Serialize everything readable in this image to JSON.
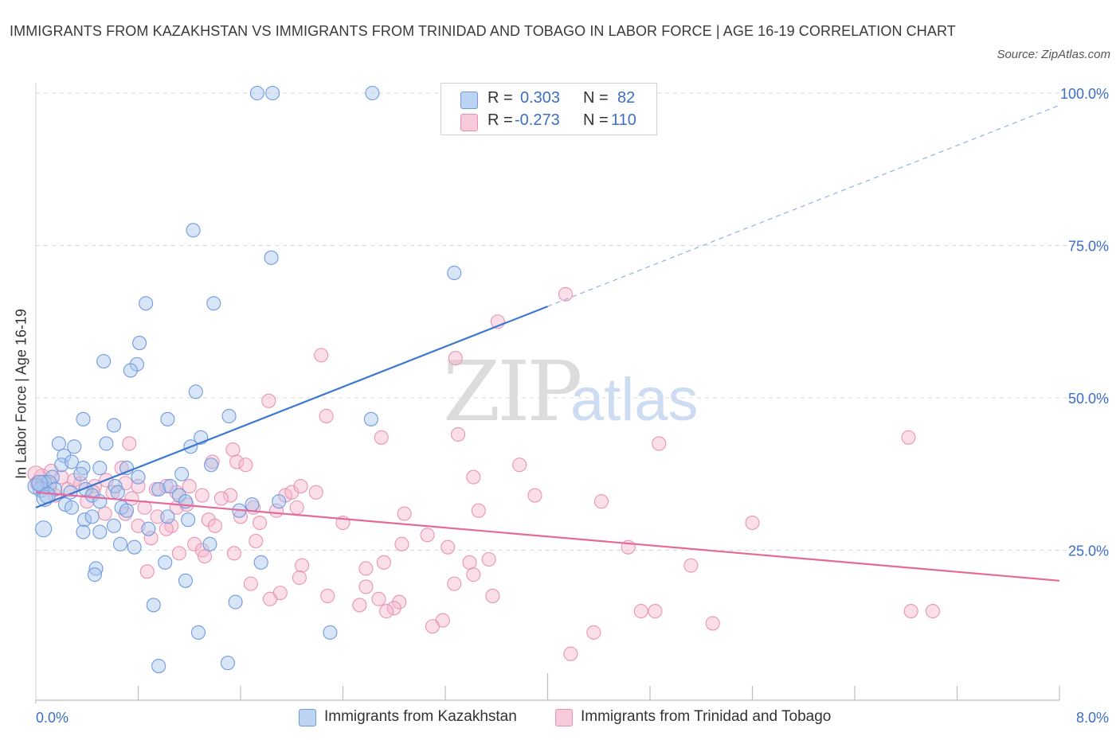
{
  "title": "IMMIGRANTS FROM KAZAKHSTAN VS IMMIGRANTS FROM TRINIDAD AND TOBAGO IN LABOR FORCE | AGE 16-19 CORRELATION CHART",
  "source": "Source: ZipAtlas.com",
  "watermark": {
    "zip": "ZIP",
    "atlas": "atlas"
  },
  "legend": {
    "rows": [
      {
        "r_label": "R =",
        "r_value": "0.303",
        "n_label": "N =",
        "n_value": "82"
      },
      {
        "r_label": "R =",
        "r_value": "-0.273",
        "n_label": "N =",
        "n_value": "110"
      }
    ]
  },
  "colors": {
    "blue": "#3b78d0",
    "blue_fill": "#a9c6ee",
    "pink": "#e46a9a",
    "pink_fill": "#f4b8cd",
    "grid": "#d8d8d8",
    "tick_label": "#3c6fc4"
  },
  "chart_data": {
    "type": "scatter",
    "title": "IMMIGRANTS FROM KAZAKHSTAN VS IMMIGRANTS FROM TRINIDAD AND TOBAGO IN LABOR FORCE | AGE 16-19 CORRELATION CHART",
    "xlabel": "",
    "ylabel": "In Labor Force | Age 16-19",
    "xlim": [
      0,
      8
    ],
    "ylim": [
      0,
      100
    ],
    "x_tick_labels": [
      "0.0%",
      "8.0%"
    ],
    "y_ticks": [
      25,
      50,
      75,
      100
    ],
    "y_tick_labels": [
      "25.0%",
      "50.0%",
      "75.0%",
      "100.0%"
    ],
    "grid": true,
    "legend_position": "top-center",
    "series": [
      {
        "name": "Immigrants from Kazakhstan",
        "color": "#3b78d0",
        "stats": {
          "R": 0.303,
          "N": 82
        },
        "trend": {
          "x0": 0.0,
          "y0": 32.0,
          "x1": 4.0,
          "y1": 65.0,
          "extend_to_x": 8.0,
          "extend_to_y": 98.0
        },
        "points": [
          [
            1.73,
            100
          ],
          [
            1.85,
            100
          ],
          [
            2.63,
            100
          ],
          [
            1.23,
            77.5
          ],
          [
            1.84,
            73.0
          ],
          [
            3.27,
            70.5
          ],
          [
            0.86,
            65.5
          ],
          [
            1.39,
            65.5
          ],
          [
            0.81,
            59.0
          ],
          [
            0.53,
            56.0
          ],
          [
            0.79,
            55.5
          ],
          [
            0.74,
            54.5
          ],
          [
            1.25,
            51.0
          ],
          [
            0.37,
            46.5
          ],
          [
            1.03,
            46.5
          ],
          [
            1.51,
            47.0
          ],
          [
            2.62,
            46.5
          ],
          [
            0.61,
            45.5
          ],
          [
            1.29,
            43.5
          ],
          [
            0.18,
            42.5
          ],
          [
            0.3,
            42.0
          ],
          [
            0.55,
            42.5
          ],
          [
            1.21,
            42.0
          ],
          [
            0.22,
            40.5
          ],
          [
            0.2,
            39.0
          ],
          [
            0.28,
            39.5
          ],
          [
            0.5,
            38.5
          ],
          [
            0.71,
            38.5
          ],
          [
            1.37,
            39.0
          ],
          [
            0.37,
            38.5
          ],
          [
            1.14,
            37.5
          ],
          [
            0.13,
            37.0
          ],
          [
            0.8,
            37.0
          ],
          [
            0.06,
            36.0
          ],
          [
            0.1,
            36.0
          ],
          [
            0.15,
            35.0
          ],
          [
            0.39,
            35.0
          ],
          [
            0.62,
            35.5
          ],
          [
            0.96,
            35.0
          ],
          [
            1.05,
            35.5
          ],
          [
            0.04,
            35.0
          ],
          [
            0.27,
            34.5
          ],
          [
            0.44,
            34.0
          ],
          [
            0.64,
            34.5
          ],
          [
            1.12,
            34.0
          ],
          [
            0.5,
            33.0
          ],
          [
            0.23,
            32.5
          ],
          [
            0.28,
            32.0
          ],
          [
            0.07,
            33.5
          ],
          [
            1.69,
            32.5
          ],
          [
            1.17,
            33.0
          ],
          [
            0.67,
            32.0
          ],
          [
            0.71,
            31.5
          ],
          [
            1.59,
            31.5
          ],
          [
            1.03,
            30.5
          ],
          [
            0.38,
            30.0
          ],
          [
            0.44,
            30.5
          ],
          [
            1.19,
            30.0
          ],
          [
            1.9,
            33.0
          ],
          [
            0.61,
            29.0
          ],
          [
            0.5,
            28.0
          ],
          [
            0.37,
            28.0
          ],
          [
            0.88,
            28.5
          ],
          [
            0.06,
            28.5
          ],
          [
            1.36,
            26.0
          ],
          [
            0.66,
            26.0
          ],
          [
            0.77,
            25.5
          ],
          [
            1.76,
            23.0
          ],
          [
            1.01,
            23.0
          ],
          [
            0.47,
            22.0
          ],
          [
            0.46,
            21.0
          ],
          [
            1.17,
            20.0
          ],
          [
            1.56,
            16.5
          ],
          [
            0.92,
            16.0
          ],
          [
            1.27,
            11.5
          ],
          [
            2.3,
            11.5
          ],
          [
            0.96,
            6.0
          ],
          [
            1.5,
            6.5
          ],
          [
            0.0,
            35.5
          ],
          [
            0.03,
            36.0
          ],
          [
            0.09,
            34.0
          ],
          [
            0.35,
            37.5
          ]
        ]
      },
      {
        "name": "Immigrants from Trinidad and Tobago",
        "color": "#e46a9a",
        "stats": {
          "R": -0.273,
          "N": 110
        },
        "trend": {
          "x0": 0.0,
          "y0": 34.5,
          "x1": 8.0,
          "y1": 20.0
        },
        "points": [
          [
            4.14,
            67.0
          ],
          [
            3.61,
            62.5
          ],
          [
            2.23,
            57.0
          ],
          [
            3.28,
            56.5
          ],
          [
            1.82,
            49.5
          ],
          [
            2.27,
            47.0
          ],
          [
            2.7,
            43.5
          ],
          [
            3.3,
            44.0
          ],
          [
            4.87,
            42.5
          ],
          [
            6.82,
            43.5
          ],
          [
            0.73,
            42.5
          ],
          [
            1.54,
            41.5
          ],
          [
            1.57,
            39.5
          ],
          [
            1.64,
            39.0
          ],
          [
            0.67,
            38.5
          ],
          [
            1.38,
            39.5
          ],
          [
            3.78,
            39.0
          ],
          [
            3.42,
            37.0
          ],
          [
            0.05,
            37.0
          ],
          [
            0.12,
            38.0
          ],
          [
            0.2,
            37.0
          ],
          [
            0.35,
            36.0
          ],
          [
            0.46,
            35.5
          ],
          [
            0.55,
            36.5
          ],
          [
            0.7,
            36.0
          ],
          [
            0.8,
            35.5
          ],
          [
            0.94,
            35.0
          ],
          [
            1.02,
            35.5
          ],
          [
            1.1,
            34.5
          ],
          [
            1.2,
            35.5
          ],
          [
            0.25,
            35.0
          ],
          [
            0.45,
            34.5
          ],
          [
            0.6,
            34.5
          ],
          [
            0.75,
            33.5
          ],
          [
            1.3,
            34.0
          ],
          [
            1.52,
            34.0
          ],
          [
            1.95,
            34.0
          ],
          [
            2.0,
            34.5
          ],
          [
            2.07,
            35.5
          ],
          [
            2.19,
            34.5
          ],
          [
            3.9,
            34.0
          ],
          [
            0.15,
            34.0
          ],
          [
            0.4,
            33.0
          ],
          [
            0.85,
            32.0
          ],
          [
            1.1,
            32.0
          ],
          [
            1.18,
            32.5
          ],
          [
            1.45,
            33.5
          ],
          [
            1.7,
            32.0
          ],
          [
            1.88,
            31.5
          ],
          [
            2.04,
            32.0
          ],
          [
            4.42,
            33.0
          ],
          [
            0.54,
            31.0
          ],
          [
            0.7,
            31.0
          ],
          [
            0.95,
            30.5
          ],
          [
            1.35,
            30.0
          ],
          [
            1.6,
            30.5
          ],
          [
            1.75,
            29.5
          ],
          [
            2.88,
            31.0
          ],
          [
            3.46,
            31.5
          ],
          [
            0.8,
            29.0
          ],
          [
            1.06,
            29.0
          ],
          [
            1.4,
            29.0
          ],
          [
            2.4,
            29.5
          ],
          [
            5.6,
            29.5
          ],
          [
            1.02,
            28.5
          ],
          [
            3.06,
            27.5
          ],
          [
            0.9,
            27.0
          ],
          [
            1.24,
            26.0
          ],
          [
            1.72,
            26.5
          ],
          [
            2.86,
            26.0
          ],
          [
            4.63,
            25.5
          ],
          [
            3.22,
            25.5
          ],
          [
            1.12,
            24.5
          ],
          [
            1.3,
            25.0
          ],
          [
            1.55,
            24.5
          ],
          [
            1.32,
            24.0
          ],
          [
            2.08,
            22.5
          ],
          [
            2.72,
            23.0
          ],
          [
            3.39,
            23.0
          ],
          [
            5.12,
            22.5
          ],
          [
            3.54,
            23.5
          ],
          [
            0.87,
            21.5
          ],
          [
            2.58,
            22.0
          ],
          [
            3.42,
            21.0
          ],
          [
            2.06,
            20.5
          ],
          [
            1.68,
            19.5
          ],
          [
            2.58,
            19.0
          ],
          [
            3.27,
            19.5
          ],
          [
            1.91,
            18.0
          ],
          [
            2.28,
            17.5
          ],
          [
            3.57,
            17.5
          ],
          [
            1.83,
            17.0
          ],
          [
            2.68,
            17.0
          ],
          [
            2.84,
            16.5
          ],
          [
            2.53,
            16.0
          ],
          [
            2.8,
            15.5
          ],
          [
            2.74,
            15.0
          ],
          [
            4.73,
            15.0
          ],
          [
            4.84,
            15.0
          ],
          [
            6.84,
            15.0
          ],
          [
            7.01,
            15.0
          ],
          [
            3.18,
            13.5
          ],
          [
            3.1,
            12.5
          ],
          [
            5.29,
            13.0
          ],
          [
            4.36,
            11.5
          ],
          [
            4.18,
            8.0
          ],
          [
            0.0,
            37.5
          ],
          [
            0.02,
            36.0
          ],
          [
            0.1,
            35.5
          ],
          [
            0.3,
            36.5
          ]
        ]
      }
    ]
  }
}
